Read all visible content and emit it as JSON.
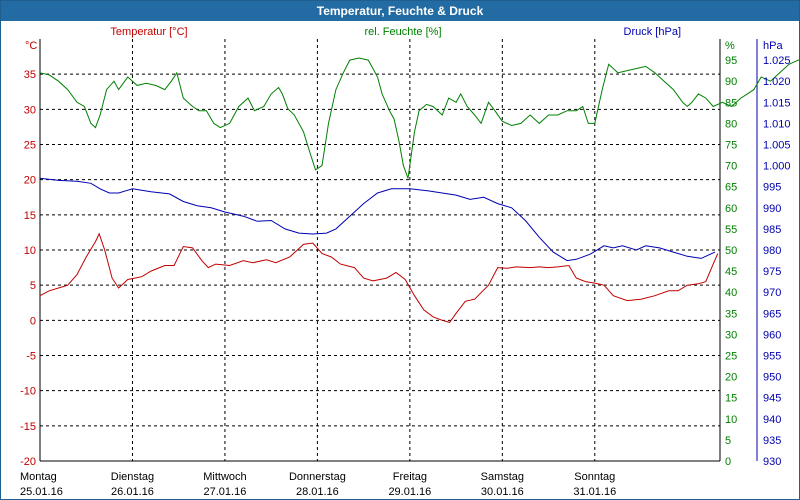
{
  "window": {
    "title": "Temperatur, Feuchte & Druck"
  },
  "colors": {
    "temperature": "#c00000",
    "humidity": "#008000",
    "pressure": "#0000b0",
    "grid": "#000000",
    "axis_text": "#000000"
  },
  "chart_data": {
    "type": "line",
    "title": "Temperatur, Feuchte & Druck",
    "grid": true,
    "x_axis": {
      "range_days": [
        0,
        7
      ],
      "ticks": [
        {
          "day": "Montag",
          "date": "25.01.16"
        },
        {
          "day": "Dienstag",
          "date": "26.01.16"
        },
        {
          "day": "Mittwoch",
          "date": "27.01.16"
        },
        {
          "day": "Donnerstag",
          "date": "28.01.16"
        },
        {
          "day": "Freitag",
          "date": "29.01.16"
        },
        {
          "day": "Samstag",
          "date": "30.01.16"
        },
        {
          "day": "Sonntag",
          "date": "31.01.16"
        }
      ]
    },
    "axes": {
      "temperature": {
        "unit": "°C",
        "label": "Temperatur [°C]",
        "range": [
          -20,
          40
        ],
        "ticks": [
          "35",
          "30",
          "25",
          "20",
          "15",
          "10",
          "5",
          "0",
          "-5",
          "-10",
          "-15",
          "-20"
        ]
      },
      "humidity": {
        "unit": "%",
        "label": "rel. Feuchte [%]",
        "range": [
          0,
          100
        ],
        "ticks": [
          "95",
          "90",
          "85",
          "80",
          "75",
          "70",
          "65",
          "60",
          "55",
          "50",
          "45",
          "40",
          "35",
          "30",
          "25",
          "20",
          "15",
          "10",
          "5",
          "0"
        ]
      },
      "pressure": {
        "unit": "hPa",
        "label": "Druck [hPa]",
        "range": [
          930,
          1030
        ],
        "ticks": [
          "1.025",
          "1.020",
          "1.015",
          "1.010",
          "1.005",
          "1.000",
          "995",
          "990",
          "985",
          "980",
          "975",
          "970",
          "965",
          "960",
          "955",
          "950",
          "945",
          "940",
          "935",
          "930"
        ]
      }
    },
    "series": [
      {
        "name": "Temperatur [°C]",
        "axis": "temperature",
        "points": [
          [
            0,
            3.5
          ],
          [
            0.1,
            4.2
          ],
          [
            0.2,
            4.6
          ],
          [
            0.3,
            5.0
          ],
          [
            0.4,
            6.5
          ],
          [
            0.5,
            9.0
          ],
          [
            0.6,
            11.2
          ],
          [
            0.64,
            12.3
          ],
          [
            0.7,
            10.0
          ],
          [
            0.78,
            6.0
          ],
          [
            0.85,
            4.6
          ],
          [
            0.95,
            5.8
          ],
          [
            1.1,
            6.2
          ],
          [
            1.2,
            7.0
          ],
          [
            1.35,
            7.8
          ],
          [
            1.45,
            7.8
          ],
          [
            1.55,
            10.5
          ],
          [
            1.65,
            10.3
          ],
          [
            1.75,
            8.5
          ],
          [
            1.82,
            7.5
          ],
          [
            1.9,
            8.0
          ],
          [
            2.05,
            7.8
          ],
          [
            2.2,
            8.5
          ],
          [
            2.3,
            8.2
          ],
          [
            2.45,
            8.6
          ],
          [
            2.55,
            8.2
          ],
          [
            2.7,
            9.0
          ],
          [
            2.85,
            10.8
          ],
          [
            2.95,
            11.0
          ],
          [
            3.05,
            9.5
          ],
          [
            3.15,
            9.0
          ],
          [
            3.25,
            8.0
          ],
          [
            3.4,
            7.5
          ],
          [
            3.5,
            6.0
          ],
          [
            3.6,
            5.6
          ],
          [
            3.75,
            6.0
          ],
          [
            3.85,
            6.8
          ],
          [
            3.95,
            5.8
          ],
          [
            4.05,
            3.5
          ],
          [
            4.15,
            1.5
          ],
          [
            4.25,
            0.5
          ],
          [
            4.35,
            0.0
          ],
          [
            4.43,
            -0.3
          ],
          [
            4.5,
            1.0
          ],
          [
            4.6,
            2.7
          ],
          [
            4.7,
            3.0
          ],
          [
            4.85,
            5.0
          ],
          [
            4.95,
            7.5
          ],
          [
            5.05,
            7.4
          ],
          [
            5.15,
            7.6
          ],
          [
            5.3,
            7.5
          ],
          [
            5.4,
            7.6
          ],
          [
            5.5,
            7.5
          ],
          [
            5.6,
            7.6
          ],
          [
            5.72,
            7.8
          ],
          [
            5.8,
            6.0
          ],
          [
            5.9,
            5.5
          ],
          [
            6.0,
            5.3
          ],
          [
            6.1,
            5.0
          ],
          [
            6.2,
            3.5
          ],
          [
            6.35,
            2.8
          ],
          [
            6.5,
            3.0
          ],
          [
            6.65,
            3.5
          ],
          [
            6.8,
            4.2
          ],
          [
            6.9,
            4.2
          ],
          [
            7.0,
            5.0
          ],
          [
            7.12,
            5.2
          ],
          [
            7.2,
            5.5
          ],
          [
            7.28,
            8.0
          ],
          [
            7.33,
            9.5
          ]
        ]
      },
      {
        "name": "rel. Feuchte [%]",
        "axis": "humidity",
        "points": [
          [
            0,
            92
          ],
          [
            0.1,
            91.5
          ],
          [
            0.2,
            90
          ],
          [
            0.3,
            88
          ],
          [
            0.4,
            85
          ],
          [
            0.48,
            84
          ],
          [
            0.55,
            80
          ],
          [
            0.6,
            79
          ],
          [
            0.65,
            82
          ],
          [
            0.72,
            88
          ],
          [
            0.8,
            90
          ],
          [
            0.85,
            88
          ],
          [
            0.95,
            91
          ],
          [
            1.05,
            89
          ],
          [
            1.15,
            89.5
          ],
          [
            1.25,
            89
          ],
          [
            1.35,
            88
          ],
          [
            1.42,
            90
          ],
          [
            1.48,
            92
          ],
          [
            1.55,
            86
          ],
          [
            1.65,
            84
          ],
          [
            1.72,
            83
          ],
          [
            1.8,
            83
          ],
          [
            1.88,
            80
          ],
          [
            1.95,
            79
          ],
          [
            2.05,
            80
          ],
          [
            2.15,
            84
          ],
          [
            2.25,
            86
          ],
          [
            2.32,
            83
          ],
          [
            2.42,
            84
          ],
          [
            2.5,
            87
          ],
          [
            2.58,
            88.5
          ],
          [
            2.62,
            87
          ],
          [
            2.68,
            83.5
          ],
          [
            2.75,
            82
          ],
          [
            2.85,
            78
          ],
          [
            2.92,
            73
          ],
          [
            2.98,
            69
          ],
          [
            3.05,
            70
          ],
          [
            3.12,
            80
          ],
          [
            3.2,
            88
          ],
          [
            3.28,
            92
          ],
          [
            3.35,
            95
          ],
          [
            3.45,
            95.5
          ],
          [
            3.55,
            95
          ],
          [
            3.6,
            93
          ],
          [
            3.65,
            91
          ],
          [
            3.7,
            87
          ],
          [
            3.78,
            83
          ],
          [
            3.83,
            81
          ],
          [
            3.88,
            76
          ],
          [
            3.93,
            70
          ],
          [
            3.98,
            67
          ],
          [
            4.05,
            78
          ],
          [
            4.1,
            83
          ],
          [
            4.18,
            84.5
          ],
          [
            4.25,
            84
          ],
          [
            4.35,
            82
          ],
          [
            4.42,
            86
          ],
          [
            4.5,
            85
          ],
          [
            4.55,
            87
          ],
          [
            4.62,
            84
          ],
          [
            4.7,
            82
          ],
          [
            4.77,
            80
          ],
          [
            4.85,
            85
          ],
          [
            4.92,
            83
          ],
          [
            5.0,
            80.5
          ],
          [
            5.1,
            79.5
          ],
          [
            5.2,
            80
          ],
          [
            5.3,
            82
          ],
          [
            5.4,
            80
          ],
          [
            5.5,
            82
          ],
          [
            5.6,
            82
          ],
          [
            5.7,
            83
          ],
          [
            5.8,
            83
          ],
          [
            5.87,
            84
          ],
          [
            5.93,
            80
          ],
          [
            6.0,
            80
          ],
          [
            6.08,
            88
          ],
          [
            6.15,
            94
          ],
          [
            6.25,
            92
          ],
          [
            6.35,
            92.5
          ],
          [
            6.45,
            93
          ],
          [
            6.55,
            93.5
          ],
          [
            6.65,
            92
          ],
          [
            6.75,
            90
          ],
          [
            6.85,
            88
          ],
          [
            6.95,
            85
          ],
          [
            7.0,
            84
          ],
          [
            7.05,
            85
          ],
          [
            7.12,
            87
          ],
          [
            7.2,
            86
          ],
          [
            7.28,
            84
          ],
          [
            7.38,
            85
          ],
          [
            7.48,
            84
          ],
          [
            7.58,
            86
          ],
          [
            7.65,
            87
          ],
          [
            7.72,
            88
          ],
          [
            7.8,
            91
          ],
          [
            7.9,
            90
          ],
          [
            8.0,
            92
          ],
          [
            8.1,
            94
          ],
          [
            8.2,
            95
          ],
          [
            8.3,
            95
          ]
        ]
      },
      {
        "name": "Druck [hPa]",
        "axis": "pressure",
        "points": [
          [
            0,
            997
          ],
          [
            0.2,
            996.5
          ],
          [
            0.4,
            996.3
          ],
          [
            0.55,
            995.8
          ],
          [
            0.65,
            994.5
          ],
          [
            0.75,
            993.5
          ],
          [
            0.85,
            993.5
          ],
          [
            1.0,
            994.5
          ],
          [
            1.2,
            993.8
          ],
          [
            1.4,
            993.3
          ],
          [
            1.55,
            991.5
          ],
          [
            1.7,
            990.5
          ],
          [
            1.85,
            990
          ],
          [
            2.0,
            989
          ],
          [
            2.2,
            988
          ],
          [
            2.35,
            986.8
          ],
          [
            2.5,
            987
          ],
          [
            2.65,
            985
          ],
          [
            2.8,
            984
          ],
          [
            2.95,
            983.8
          ],
          [
            3.1,
            984
          ],
          [
            3.2,
            985
          ],
          [
            3.35,
            988
          ],
          [
            3.5,
            991
          ],
          [
            3.65,
            993.5
          ],
          [
            3.8,
            994.5
          ],
          [
            4.0,
            994.5
          ],
          [
            4.2,
            994
          ],
          [
            4.35,
            993.5
          ],
          [
            4.5,
            993
          ],
          [
            4.65,
            992
          ],
          [
            4.8,
            992.5
          ],
          [
            4.95,
            991
          ],
          [
            5.1,
            990
          ],
          [
            5.25,
            987
          ],
          [
            5.4,
            983
          ],
          [
            5.55,
            979.5
          ],
          [
            5.7,
            977.5
          ],
          [
            5.8,
            977.8
          ],
          [
            5.95,
            979
          ],
          [
            6.1,
            981
          ],
          [
            6.2,
            980.5
          ],
          [
            6.3,
            981
          ],
          [
            6.45,
            980
          ],
          [
            6.55,
            981
          ],
          [
            6.7,
            980.5
          ],
          [
            6.85,
            979.5
          ],
          [
            7.0,
            978.5
          ],
          [
            7.15,
            978
          ],
          [
            7.3,
            979.5
          ]
        ]
      }
    ]
  }
}
